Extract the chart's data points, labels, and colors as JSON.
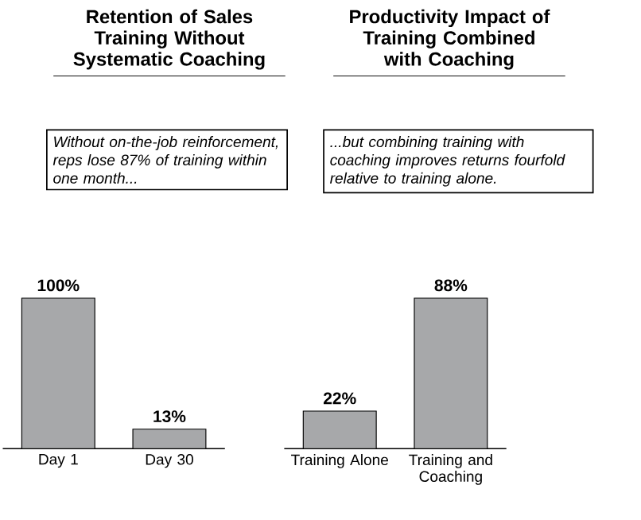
{
  "chart_data": [
    {
      "type": "bar",
      "title": "Retention of Sales Training Without Systematic Coaching",
      "categories": [
        "Day 1",
        "Day 30"
      ],
      "values": [
        100,
        13
      ],
      "value_labels": [
        "100%",
        "13%"
      ],
      "color": "#a7a8aa",
      "annotations": [
        "Without on-the-job reinforcement, reps lose 87% of training within one month..."
      ]
    },
    {
      "type": "bar",
      "title": "Productivity Impact of Training Combined with Coaching",
      "categories": [
        "Training Alone",
        "Training and Coaching"
      ],
      "values": [
        22,
        88
      ],
      "value_labels": [
        "22%",
        "88%"
      ],
      "color": "#a7a8aa",
      "annotations": [
        "...but combining training with coaching improves returns fourfold relative to training alone."
      ]
    }
  ]
}
